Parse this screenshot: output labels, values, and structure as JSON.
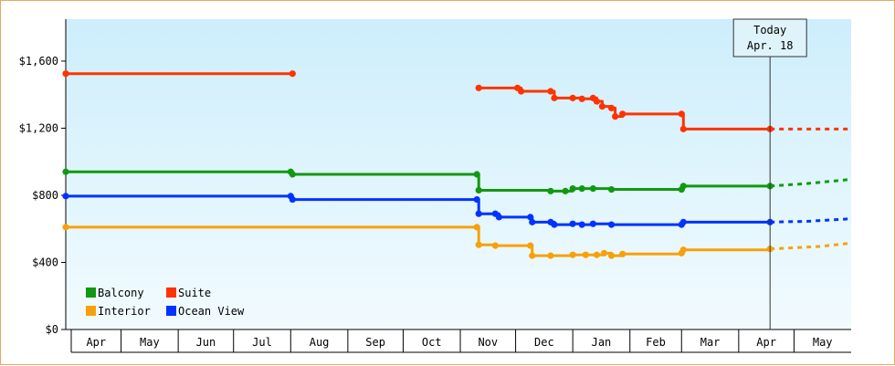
{
  "chart_data": {
    "type": "line",
    "title": "",
    "xlabel": "",
    "ylabel": "",
    "ylim": [
      0,
      1850
    ],
    "y_ticks": [
      0,
      400,
      800,
      1200,
      1600
    ],
    "y_tick_labels": [
      "$0",
      "$400",
      "$800",
      "$1,200",
      "$1,600"
    ],
    "x_range": [
      "2025-04-01",
      "2026-06-01"
    ],
    "month_labels": [
      "Apr",
      "May",
      "Jun",
      "Jul",
      "Aug",
      "Sep",
      "Oct",
      "Nov",
      "Dec",
      "Jan",
      "Feb",
      "Mar",
      "Apr",
      "May"
    ],
    "today": {
      "date": "2026-04-18",
      "line1": "Today",
      "line2": "Apr. 18"
    },
    "legend": {
      "placement": "bottom-left",
      "columns": 2
    },
    "grid": false,
    "background": {
      "top": "#cdeefc",
      "bottom": "#f2fbfe"
    },
    "series": [
      {
        "name": "Balcony",
        "color": "#119911",
        "points": [
          [
            "2025-04-01",
            940
          ],
          [
            "2025-08-01",
            940
          ],
          [
            "2025-08-02",
            925
          ],
          [
            "2025-11-10",
            925
          ],
          [
            "2025-11-11",
            830
          ],
          [
            "2025-12-20",
            825
          ],
          [
            "2025-12-28",
            825
          ],
          [
            "2026-01-01",
            840
          ],
          [
            "2026-01-06",
            840
          ],
          [
            "2026-01-12",
            840
          ],
          [
            "2026-01-22",
            835
          ],
          [
            "2026-03-01",
            835
          ],
          [
            "2026-03-02",
            855
          ],
          [
            "2026-04-18",
            855
          ]
        ],
        "forecast": [
          [
            "2026-04-18",
            855
          ],
          [
            "2026-05-08",
            870
          ],
          [
            "2026-06-01",
            895
          ]
        ]
      },
      {
        "name": "Suite",
        "color": "#ff3300",
        "points": [
          [
            "2025-04-01",
            1525
          ],
          [
            "2025-08-02",
            1525
          ]
        ],
        "points2": [
          [
            "2025-11-11",
            1440
          ],
          [
            "2025-12-02",
            1440
          ],
          [
            "2025-12-04",
            1420
          ],
          [
            "2025-12-20",
            1420
          ],
          [
            "2025-12-22",
            1380
          ],
          [
            "2026-01-01",
            1380
          ],
          [
            "2026-01-06",
            1375
          ],
          [
            "2026-01-12",
            1380
          ],
          [
            "2026-01-14",
            1360
          ],
          [
            "2026-01-17",
            1330
          ],
          [
            "2026-01-22",
            1320
          ],
          [
            "2026-01-24",
            1270
          ],
          [
            "2026-01-28",
            1285
          ],
          [
            "2026-03-01",
            1285
          ],
          [
            "2026-03-02",
            1195
          ],
          [
            "2026-04-18",
            1195
          ]
        ],
        "forecast": [
          [
            "2026-04-18",
            1195
          ],
          [
            "2026-06-01",
            1195
          ]
        ]
      },
      {
        "name": "Interior",
        "color": "#f7a10a",
        "points": [
          [
            "2025-04-01",
            610
          ],
          [
            "2025-11-10",
            610
          ],
          [
            "2025-11-11",
            505
          ],
          [
            "2025-11-20",
            500
          ],
          [
            "2025-12-09",
            500
          ],
          [
            "2025-12-10",
            440
          ],
          [
            "2025-12-20",
            440
          ],
          [
            "2026-01-01",
            445
          ],
          [
            "2026-01-08",
            445
          ],
          [
            "2026-01-14",
            445
          ],
          [
            "2026-01-18",
            455
          ],
          [
            "2026-01-22",
            440
          ],
          [
            "2026-01-28",
            450
          ],
          [
            "2026-03-01",
            455
          ],
          [
            "2026-03-02",
            475
          ],
          [
            "2026-04-18",
            480
          ]
        ],
        "forecast": [
          [
            "2026-04-18",
            480
          ],
          [
            "2026-05-15",
            495
          ],
          [
            "2026-06-01",
            515
          ]
        ]
      },
      {
        "name": "Ocean View",
        "color": "#0033ff",
        "points": [
          [
            "2025-04-01",
            795
          ],
          [
            "2025-08-01",
            795
          ],
          [
            "2025-08-02",
            775
          ],
          [
            "2025-11-10",
            775
          ],
          [
            "2025-11-11",
            690
          ],
          [
            "2025-11-20",
            690
          ],
          [
            "2025-11-22",
            670
          ],
          [
            "2025-12-09",
            670
          ],
          [
            "2025-12-10",
            640
          ],
          [
            "2025-12-20",
            640
          ],
          [
            "2025-12-22",
            625
          ],
          [
            "2026-01-01",
            630
          ],
          [
            "2026-01-06",
            625
          ],
          [
            "2026-01-12",
            630
          ],
          [
            "2026-01-22",
            625
          ],
          [
            "2026-03-01",
            625
          ],
          [
            "2026-03-02",
            640
          ],
          [
            "2026-04-18",
            640
          ]
        ],
        "forecast": [
          [
            "2026-04-18",
            640
          ],
          [
            "2026-05-08",
            645
          ],
          [
            "2026-06-01",
            660
          ]
        ]
      }
    ]
  }
}
